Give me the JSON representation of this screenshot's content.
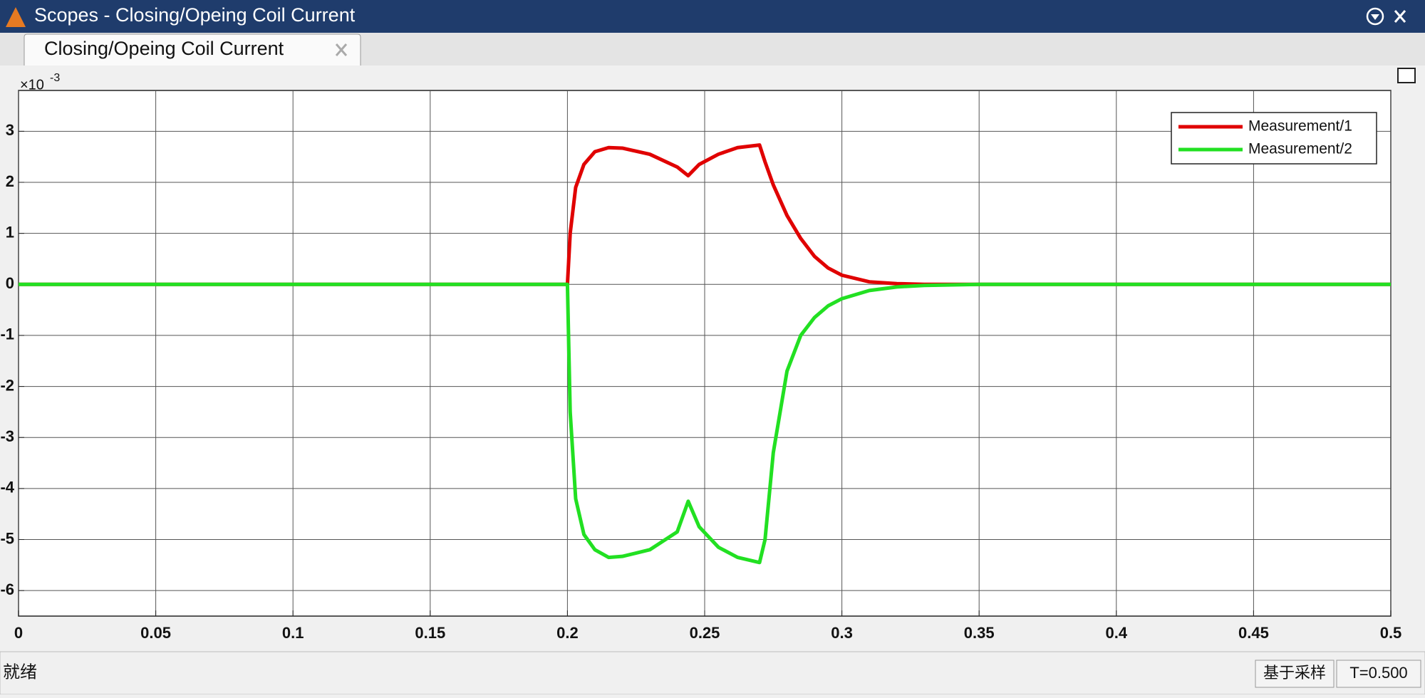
{
  "window": {
    "title": "Scopes - Closing/Opeing Coil Current"
  },
  "tab": {
    "label": "Closing/Opeing Coil Current"
  },
  "status": {
    "left": "就绪",
    "mode": "基于采样",
    "time": "T=0.500"
  },
  "chart_data": {
    "type": "line",
    "y_multiplier": {
      "base": "×10",
      "exponent": "-3"
    },
    "x": [
      0,
      0.2,
      0.201,
      0.203,
      0.206,
      0.21,
      0.215,
      0.22,
      0.23,
      0.24,
      0.244,
      0.248,
      0.255,
      0.262,
      0.27,
      0.272,
      0.275,
      0.28,
      0.285,
      0.29,
      0.295,
      0.3,
      0.31,
      0.32,
      0.33,
      0.35,
      0.5
    ],
    "series": [
      {
        "name": "Measurement/1",
        "color": "#e00000",
        "values": [
          0,
          0,
          1.0,
          1.9,
          2.35,
          2.6,
          2.68,
          2.67,
          2.55,
          2.3,
          2.13,
          2.35,
          2.55,
          2.68,
          2.73,
          2.4,
          1.95,
          1.35,
          0.9,
          0.55,
          0.32,
          0.18,
          0.05,
          0.015,
          0,
          0,
          0
        ]
      },
      {
        "name": "Measurement/2",
        "color": "#22e022",
        "values": [
          0,
          0,
          -2.5,
          -4.2,
          -4.9,
          -5.2,
          -5.35,
          -5.33,
          -5.2,
          -4.85,
          -4.25,
          -4.75,
          -5.15,
          -5.35,
          -5.45,
          -5.0,
          -3.3,
          -1.7,
          -1.0,
          -0.65,
          -0.42,
          -0.28,
          -0.12,
          -0.05,
          -0.02,
          0,
          0
        ]
      }
    ],
    "xlim": [
      0,
      0.5
    ],
    "xticks": [
      0,
      0.05,
      0.1,
      0.15,
      0.2,
      0.25,
      0.3,
      0.35,
      0.4,
      0.45,
      0.5
    ],
    "ylim": [
      -6.5,
      3.8
    ],
    "yticks": [
      -6,
      -5,
      -4,
      -3,
      -2,
      -1,
      0,
      1,
      2,
      3
    ],
    "grid": true,
    "legend": "upper right"
  }
}
